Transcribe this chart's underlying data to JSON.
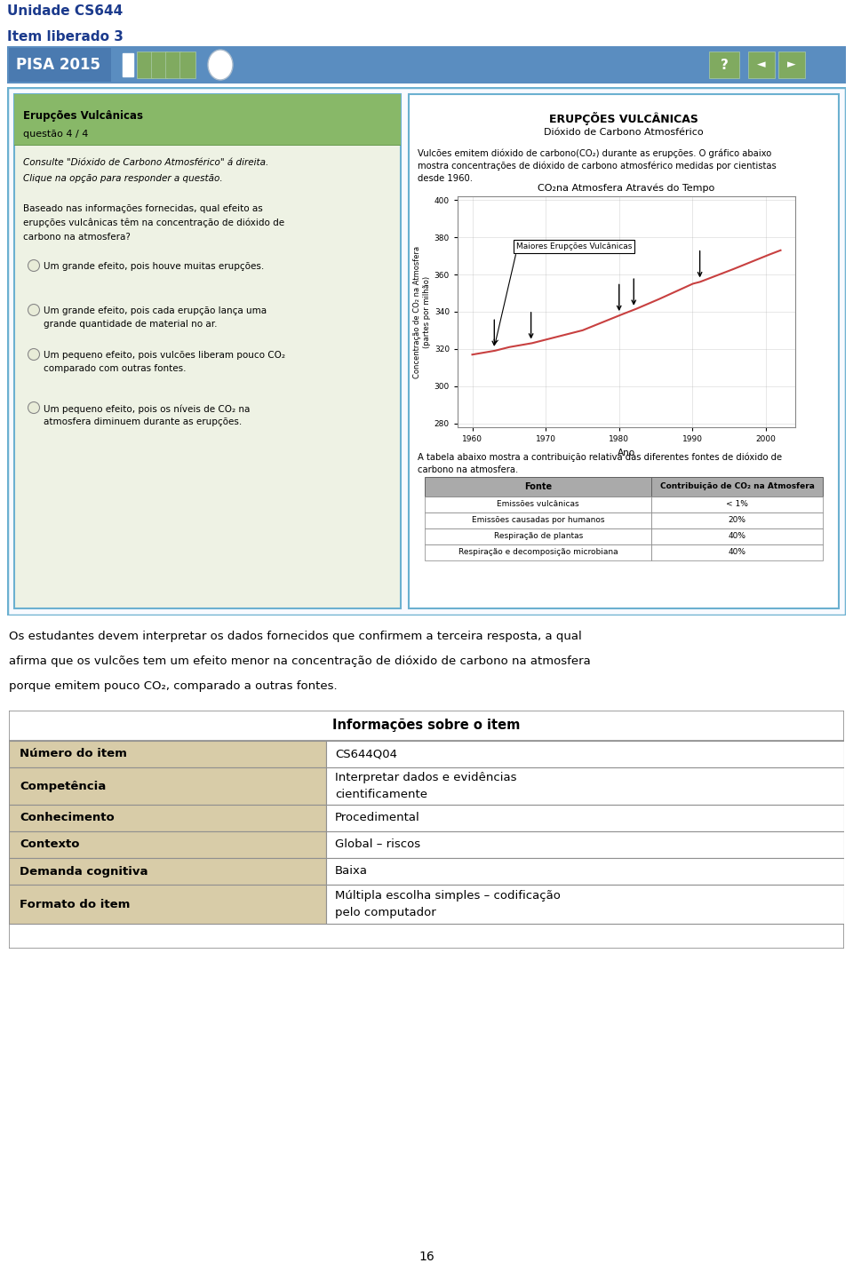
{
  "title_line1": "Unidade CS644",
  "title_line2": "Item liberado 3",
  "pisa_label": "PISA 2015",
  "left_panel_title": "Erupções Vulcânicas",
  "left_panel_subtitle": "questão 4 / 4",
  "options": [
    "Um grande efeito, pois houve muitas erupções.",
    "Um grande efeito, pois cada erupção lança uma\ngrande quantidade de material no ar.",
    "Um pequeno efeito, pois vulcões liberam pouco CO₂\ncomparado com outras fontes.",
    "Um pequeno efeito, pois os níveis de CO₂ na\natmosfera diminuem durante as erupções."
  ],
  "right_panel_title": "ERUPÇÕES VULCÂNICAS",
  "right_panel_subtitle": "Dióxido de Carbono Atmosférico",
  "right_panel_intro_lines": [
    "Vulcões emitem dióxido de carbono(CO₂) durante as erupções. O gráfico abaixo",
    "mostra concentrações de dióxido de carbono atmosférico medidas por cientistas",
    "desde 1960."
  ],
  "graph_title": "CO₂na Atmosfera Através do Tempo",
  "graph_ylabel": "Concentração de CO₂ na Atmosfera\n(partes por milhão)",
  "graph_xlabel": "Ano",
  "graph_legend": "Maiores Erupções Vulcânicas",
  "graph_x": [
    1960,
    1963,
    1965,
    1968,
    1970,
    1975,
    1980,
    1982,
    1985,
    1990,
    1991,
    1995,
    2000,
    2002
  ],
  "graph_y": [
    317,
    319,
    321,
    323,
    325,
    330,
    338,
    341,
    346,
    355,
    356,
    362,
    370,
    373
  ],
  "graph_xlim": [
    1958,
    2004
  ],
  "graph_ylim": [
    278,
    402
  ],
  "graph_yticks": [
    280,
    300,
    320,
    340,
    360,
    380,
    400
  ],
  "graph_xticks": [
    1960,
    1970,
    1980,
    1990,
    2000
  ],
  "eruptions": [
    1963,
    1968,
    1980,
    1982,
    1991
  ],
  "table_intro_lines": [
    "A tabela abaixo mostra a contribuição relativa das diferentes fontes de dióxido de",
    "carbono na atmosfera."
  ],
  "table_headers": [
    "Fonte",
    "Contribuição de CO₂ na Atmosfera"
  ],
  "table_rows": [
    [
      "Emissões vulcânicas",
      "< 1%"
    ],
    [
      "Emissões causadas por humanos",
      "20%"
    ],
    [
      "Respiração de plantas",
      "40%"
    ],
    [
      "Respiração e decomposição microbiana",
      "40%"
    ]
  ],
  "explanation_text": "Os estudantes devem interpretar os dados fornecidos que confirmem a terceira resposta, a qual\nafirma que os vulcões tem um efeito menor na concentração de dióxido de carbono na atmosfera\nporque emitem pouco CO₂, comparado a outras fontes.",
  "info_table_title": "Informações sobre o item",
  "info_rows": [
    [
      "Número do item",
      "CS644Q04"
    ],
    [
      "Competência",
      "Interpretar dados e evidências\ncientificamente"
    ],
    [
      "Conhecimento",
      "Procedimental"
    ],
    [
      "Contexto",
      "Global – riscos"
    ],
    [
      "Demanda cognitiva",
      "Baixa"
    ],
    [
      "Formato do item",
      "Múltipla escolha simples – codificação\npelo computador"
    ]
  ],
  "page_number": "16",
  "colors": {
    "header_blue": "#1B3A8C",
    "pisa_bg": "#5A8DC0",
    "panel_border_blue": "#6BB0D0",
    "left_panel_bg": "#EEF2E4",
    "left_title_bg": "#88B868",
    "left_title_border": "#6A9A50",
    "graph_line": "#C84040",
    "graph_bg": "#FFFFFF",
    "graph_border": "#808080",
    "table_header_bg": "#AAAAAA",
    "info_label_bg": "#D8CCA8",
    "info_border": "#909090",
    "question_mark_bg": "#6B9B4A",
    "nav_bg": "#6B9B4A"
  }
}
